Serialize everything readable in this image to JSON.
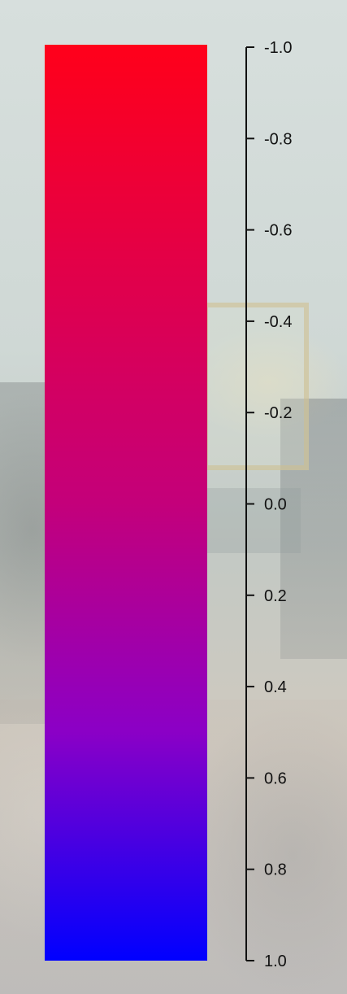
{
  "chart_data": {
    "type": "heatmap",
    "title": "",
    "colorbar": {
      "range": [
        -1.0,
        1.0
      ],
      "direction": "top-to-bottom",
      "color_stops": [
        {
          "value": -1.0,
          "color": "#ff001a"
        },
        {
          "value": 0.0,
          "color": "#c4007a"
        },
        {
          "value": 0.5,
          "color": "#8b00c6"
        },
        {
          "value": 1.0,
          "color": "#0000ff"
        }
      ]
    },
    "ticks": [
      {
        "value": -1.0,
        "label": "-1.0"
      },
      {
        "value": -0.8,
        "label": "-0.8"
      },
      {
        "value": -0.6,
        "label": "-0.6"
      },
      {
        "value": -0.4,
        "label": "-0.4"
      },
      {
        "value": -0.2,
        "label": "-0.2"
      },
      {
        "value": 0.0,
        "label": "0.0"
      },
      {
        "value": 0.2,
        "label": "0.2"
      },
      {
        "value": 0.4,
        "label": "0.4"
      },
      {
        "value": 0.6,
        "label": "0.6"
      },
      {
        "value": 0.8,
        "label": "0.8"
      },
      {
        "value": 1.0,
        "label": "1.0"
      }
    ]
  }
}
